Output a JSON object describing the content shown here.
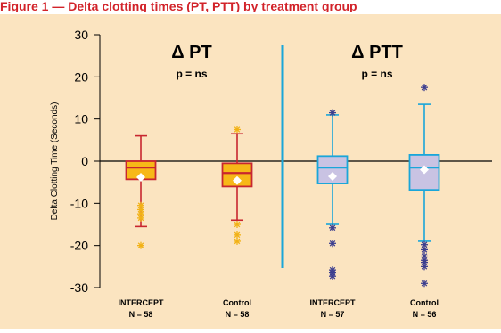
{
  "header": {
    "text": "Figure 1 — Delta clotting times (PT, PTT) by treatment group"
  },
  "chart_data": {
    "type": "boxplot",
    "ylabel": "Delta Clotting Time (Seconds)",
    "ylim": [
      -30,
      30
    ],
    "yticks": [
      30,
      20,
      10,
      0,
      -10,
      -20,
      -30
    ],
    "groups": [
      {
        "name": "Δ PT",
        "pvalue_label": "p = ns",
        "style": {
          "fill": "#f7b818",
          "stroke": "#c8262f",
          "outlier": "#f2b216"
        },
        "boxes": [
          {
            "label": "INTERCEPT",
            "n_label": "N = 58",
            "whisker_low": -15.5,
            "q1": -4.3,
            "median": -1.5,
            "q3": 0,
            "whisker_high": 6,
            "mean": -3.8,
            "outliers": [
              -10.5,
              -11.5,
              -12.5,
              -13.5,
              -20
            ]
          },
          {
            "label": "Control",
            "n_label": "N = 58",
            "whisker_low": -14,
            "q1": -6,
            "median": -2.8,
            "q3": -0.5,
            "whisker_high": 6.5,
            "mean": -4.6,
            "outliers": [
              7.5,
              -15,
              -17.5,
              -19
            ]
          }
        ]
      },
      {
        "name": "Δ PTT",
        "pvalue_label": "p = ns",
        "style": {
          "fill": "#c9c3e3",
          "stroke": "#1aa6d9",
          "outlier": "#3d3f8f"
        },
        "boxes": [
          {
            "label": "INTERCEPT",
            "n_label": "N = 57",
            "whisker_low": -15,
            "q1": -5.3,
            "median": -1.5,
            "q3": 1.2,
            "whisker_high": 11,
            "mean": -3.6,
            "outliers": [
              11.5,
              -15.8,
              -19.5,
              -25.8,
              -26.5,
              -27.3
            ]
          },
          {
            "label": "Control",
            "n_label": "N = 56",
            "whisker_low": -19,
            "q1": -6.8,
            "median": -1.5,
            "q3": 1.5,
            "whisker_high": 13.5,
            "mean": -2,
            "outliers": [
              17.5,
              -19.8,
              -21,
              -22.5,
              -23.5,
              -24,
              -25,
              -29
            ]
          }
        ]
      }
    ]
  }
}
